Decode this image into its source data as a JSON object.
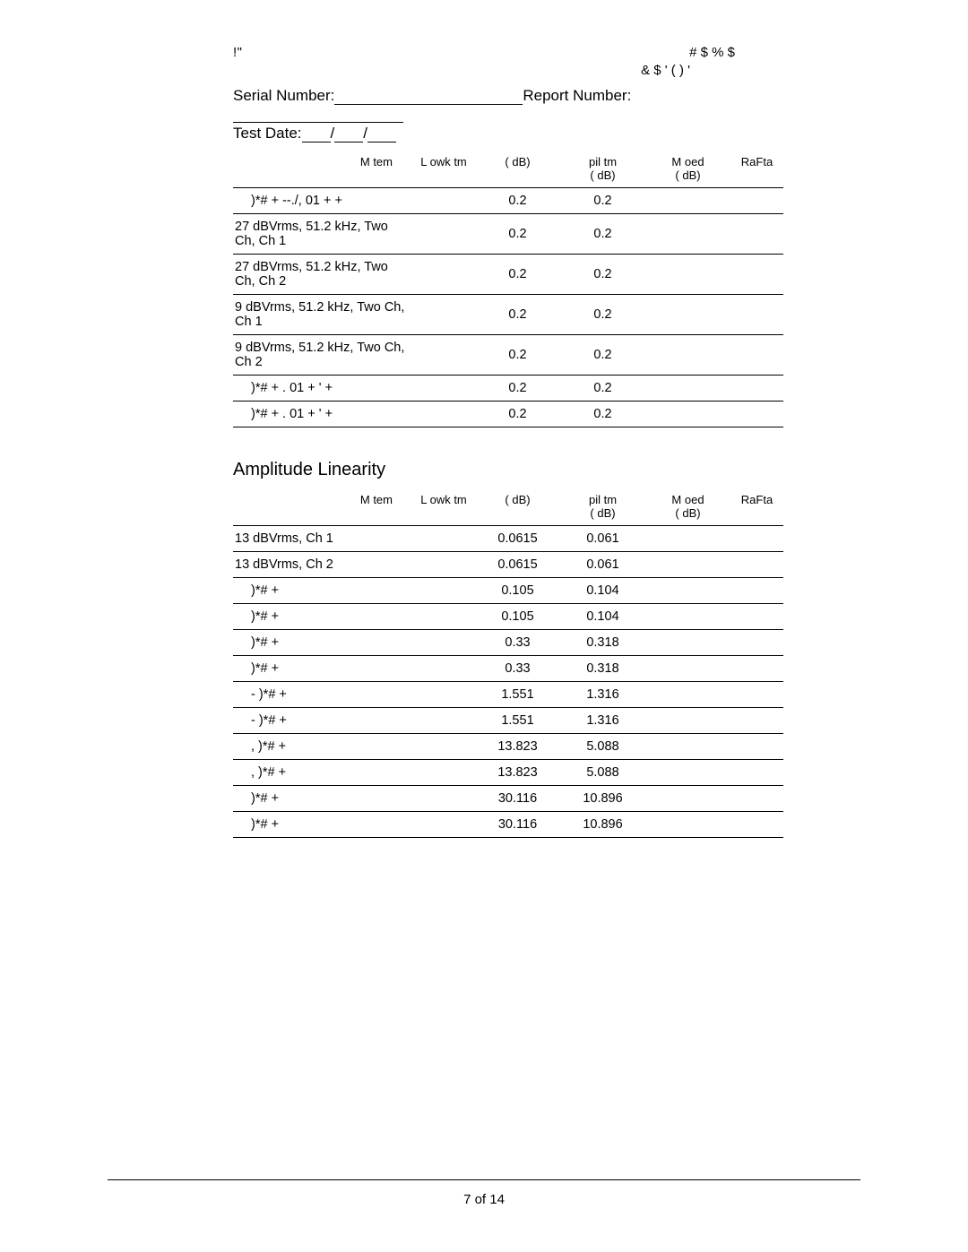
{
  "header": {
    "left1": "!\"",
    "right1": "#  $    %  $",
    "right2": "&  $    '  (  )  '"
  },
  "meta": {
    "serial_label": "Serial Number:",
    "report_label": "Report Number:",
    "testdate_label": "Test Date:"
  },
  "columns": {
    "item": "M tem",
    "lower": "L owk tm",
    "min": "pil tm",
    "max": "M oed",
    "pf": "RaFta",
    "unit": "( dB)"
  },
  "table1": {
    "rows": [
      {
        "item": ")*#  + --./, 01 +     +",
        "indent": true,
        "min": "0.2",
        "max": "0.2"
      },
      {
        "item": "27 dBVrms, 51.2 kHz, Two Ch, Ch 1",
        "indent": false,
        "min": "0.2",
        "max": "0.2"
      },
      {
        "item": "27 dBVrms, 51.2 kHz, Two Ch, Ch 2",
        "indent": false,
        "min": "0.2",
        "max": "0.2"
      },
      {
        "item": "9 dBVrms, 51.2 kHz, Two Ch, Ch 1",
        "indent": false,
        "min": "0.2",
        "max": "0.2"
      },
      {
        "item": "9 dBVrms, 51.2 kHz, Two Ch, Ch 2",
        "indent": false,
        "min": "0.2",
        "max": "0.2"
      },
      {
        "item": ")*#  +  .  01 + '   +",
        "indent": true,
        "min": "0.2",
        "max": "0.2"
      },
      {
        "item": ")*#  +  .  01 + '   +",
        "indent": true,
        "min": "0.2",
        "max": "0.2"
      }
    ]
  },
  "section2_title": "Amplitude Linearity",
  "table2": {
    "rows": [
      {
        "item": "13 dBVrms, Ch 1",
        "indent": false,
        "min": "0.0615",
        "max": "0.061"
      },
      {
        "item": "13 dBVrms, Ch 2",
        "indent": false,
        "min": "0.0615",
        "max": "0.061"
      },
      {
        "item": ")*#  +",
        "indent": true,
        "min": "0.105",
        "max": "0.104"
      },
      {
        "item": ")*#  +",
        "indent": true,
        "min": "0.105",
        "max": "0.104"
      },
      {
        "item": ")*#  +",
        "indent": true,
        "min": "0.33",
        "max": "0.318"
      },
      {
        "item": ")*#  +",
        "indent": true,
        "min": "0.33",
        "max": "0.318"
      },
      {
        "item": "- )*#  +",
        "indent": true,
        "min": "1.551",
        "max": "1.316"
      },
      {
        "item": "- )*#  +",
        "indent": true,
        "min": "1.551",
        "max": "1.316"
      },
      {
        "item": ", )*#  +",
        "indent": true,
        "min": "13.823",
        "max": "5.088"
      },
      {
        "item": ", )*#  +",
        "indent": true,
        "min": "13.823",
        "max": "5.088"
      },
      {
        "item": ")*#  +",
        "indent": true,
        "min": "30.116",
        "max": "10.896"
      },
      {
        "item": ")*#  +",
        "indent": true,
        "min": "30.116",
        "max": "10.896"
      }
    ]
  },
  "footer": {
    "page_label": "7 of 14"
  }
}
